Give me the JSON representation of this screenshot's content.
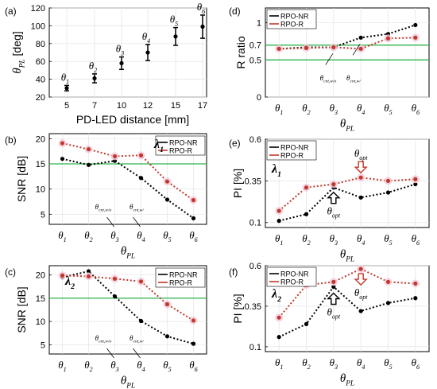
{
  "chart_data": [
    {
      "id": "a",
      "panel_label": "(a)",
      "type": "scatter",
      "title": "",
      "xlabel": "PD-LED distance [mm]",
      "ylabel": "θPL [deg]",
      "x_ticks": [
        "5",
        "7",
        "10",
        "12",
        "15",
        "17"
      ],
      "y_ticks": [
        20,
        40,
        60,
        80,
        100,
        120
      ],
      "ylim": [
        20,
        120
      ],
      "grid": true,
      "series": [
        {
          "values": [
            30,
            41,
            58,
            70,
            88,
            99
          ],
          "err": [
            3,
            5,
            7,
            9,
            10,
            13
          ],
          "point_labels": [
            "θ1",
            "θ2",
            "θ3",
            "θ4",
            "θ5",
            "θ6"
          ]
        }
      ]
    },
    {
      "id": "b",
      "panel_label": "(b)",
      "type": "line",
      "xlabel": "θPL",
      "ylabel": "SNR [dB]",
      "categories": [
        "θ1",
        "θ2",
        "θ3",
        "θ4",
        "θ5",
        "θ6"
      ],
      "y_ticks": [
        5,
        10,
        15,
        20
      ],
      "ylim": [
        3,
        21
      ],
      "grid": true,
      "legend": "top-right",
      "threshold": 15,
      "lambda_label": "λ1",
      "series": [
        {
          "name": "RPO-NR",
          "color": "#000000",
          "values": [
            16,
            14.8,
            15.6,
            12.2,
            7.9,
            4.2
          ]
        },
        {
          "name": "RPO-R",
          "color": "#c0392b",
          "values": [
            19.1,
            17.9,
            16.5,
            16.7,
            11.5,
            7.8
          ]
        }
      ],
      "annotations": [
        "θcnt,w/o",
        "θcnt,w/"
      ]
    },
    {
      "id": "c",
      "panel_label": "(c)",
      "type": "line",
      "xlabel": "θPL",
      "ylabel": "SNR [dB]",
      "categories": [
        "θ1",
        "θ2",
        "θ3",
        "θ4",
        "θ5",
        "θ6"
      ],
      "y_ticks": [
        5,
        10,
        15,
        20
      ],
      "ylim": [
        3,
        22
      ],
      "grid": true,
      "legend": "top-right",
      "threshold": 15,
      "lambda_label": "λ2",
      "series": [
        {
          "name": "RPO-NR",
          "color": "#000000",
          "values": [
            19.5,
            20.8,
            15.4,
            10.1,
            6.8,
            5.2
          ]
        },
        {
          "name": "RPO-R",
          "color": "#c0392b",
          "values": [
            19.9,
            19.7,
            19.2,
            18.6,
            13.7,
            10.2
          ]
        }
      ],
      "annotations": [
        "θcnt,w/o",
        "θcnt,w/"
      ]
    },
    {
      "id": "d",
      "panel_label": "(d)",
      "type": "line",
      "xlabel": "θPL",
      "ylabel": "R ratio",
      "categories": [
        "θ1",
        "θ2",
        "θ3",
        "θ4",
        "θ5",
        "θ6"
      ],
      "y_ticks": [
        "0",
        "0.5",
        "0.7",
        "1"
      ],
      "ylim": [
        0,
        1.2
      ],
      "grid": true,
      "legend": "top-left",
      "thresholds": [
        0.5,
        0.7
      ],
      "series": [
        {
          "name": "RPO-NR",
          "color": "#000000",
          "values": [
            0.65,
            0.67,
            0.67,
            0.8,
            0.85,
            0.97
          ]
        },
        {
          "name": "RPO-R",
          "color": "#c0392b",
          "values": [
            0.65,
            0.66,
            0.67,
            0.65,
            0.79,
            0.8
          ]
        }
      ],
      "annotations": [
        "θcnt,w/o",
        "θcnt,w/"
      ]
    },
    {
      "id": "e",
      "panel_label": "(e)",
      "type": "line",
      "xlabel": "θPL",
      "ylabel": "PI [%]",
      "categories": [
        "θ1",
        "θ2",
        "θ3",
        "θ4",
        "θ5",
        "θ6"
      ],
      "y_ticks": [
        0.1,
        0.35,
        0.6
      ],
      "ylim": [
        0.07,
        0.6
      ],
      "grid": true,
      "legend": "top-left",
      "lambda_label": "λ1",
      "series": [
        {
          "name": "RPO-NR",
          "color": "#000000",
          "values": [
            0.11,
            0.15,
            0.31,
            0.25,
            0.28,
            0.33
          ]
        },
        {
          "name": "RPO-R",
          "color": "#c0392b",
          "values": [
            0.17,
            0.31,
            0.33,
            0.37,
            0.35,
            0.36
          ]
        }
      ],
      "annotations": [
        "θopt",
        "θopt"
      ]
    },
    {
      "id": "f",
      "panel_label": "(f)",
      "type": "line",
      "xlabel": "θPL",
      "ylabel": "PI [%]",
      "categories": [
        "θ1",
        "θ2",
        "θ3",
        "θ4",
        "θ5",
        "θ6"
      ],
      "y_ticks": [
        0.1,
        0.35,
        0.6
      ],
      "ylim": [
        0.07,
        0.6
      ],
      "grid": true,
      "legend": "top-left",
      "lambda_label": "λ2",
      "series": [
        {
          "name": "RPO-NR",
          "color": "#000000",
          "values": [
            0.16,
            0.24,
            0.47,
            0.32,
            0.37,
            0.4
          ]
        },
        {
          "name": "RPO-R",
          "color": "#c0392b",
          "values": [
            0.28,
            0.48,
            0.5,
            0.58,
            0.5,
            0.49
          ]
        }
      ],
      "annotations": [
        "θopt",
        "θopt"
      ]
    }
  ]
}
